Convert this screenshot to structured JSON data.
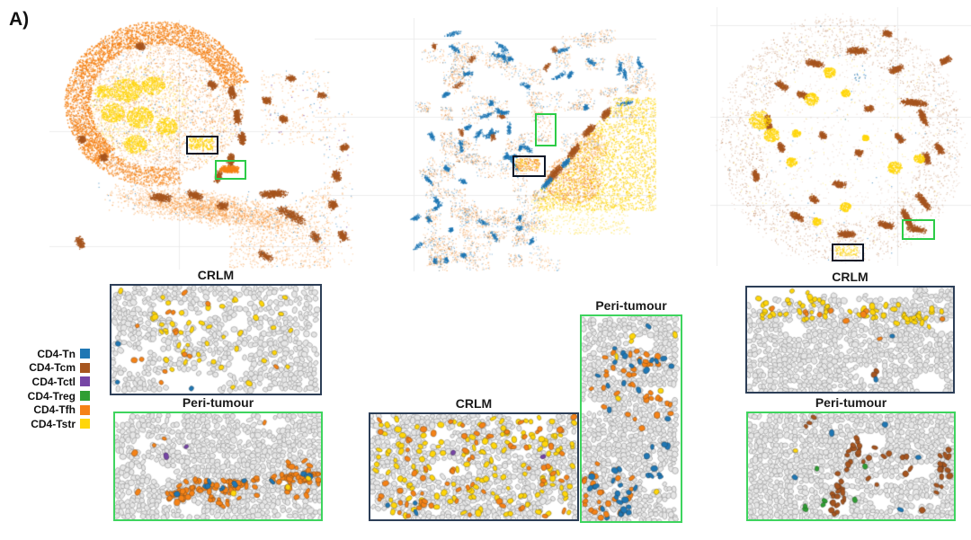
{
  "panel": {
    "label": "A)"
  },
  "legend": {
    "items": [
      {
        "label": "CD4-Tn",
        "color": "#1f77b4"
      },
      {
        "label": "CD4-Tcm",
        "color": "#a6551f"
      },
      {
        "label": "CD4-Tctl",
        "color": "#7645a5"
      },
      {
        "label": "CD4-Treg",
        "color": "#2f9e33"
      },
      {
        "label": "CD4-Tfh",
        "color": "#f58216"
      },
      {
        "label": "CD4-Tstr",
        "color": "#ffd60a"
      }
    ]
  },
  "insets": [
    {
      "title": "CRLM",
      "border": "dark"
    },
    {
      "title": "Peri-tumour",
      "border": "green"
    },
    {
      "title": "CRLM",
      "border": "dark"
    },
    {
      "title": "Peri-tumour",
      "border": "green"
    },
    {
      "title": "CRLM",
      "border": "dark"
    },
    {
      "title": "Peri-tumour",
      "border": "green"
    }
  ],
  "colors": {
    "tn": "#1f77b4",
    "tcm": "#a6551f",
    "tctl": "#7645a5",
    "treg": "#2f9e33",
    "tfh": "#f58216",
    "tstr": "#ffd60a",
    "roi_black": "#0d1626",
    "roi_green": "#2dcc47",
    "inset_border_dark": "#2c3e57",
    "inset_border_green": "#3ed45e",
    "cell_fill": "#e6e6e6",
    "cell_stroke": "#8d8d8d",
    "gridline": "#ececec"
  }
}
